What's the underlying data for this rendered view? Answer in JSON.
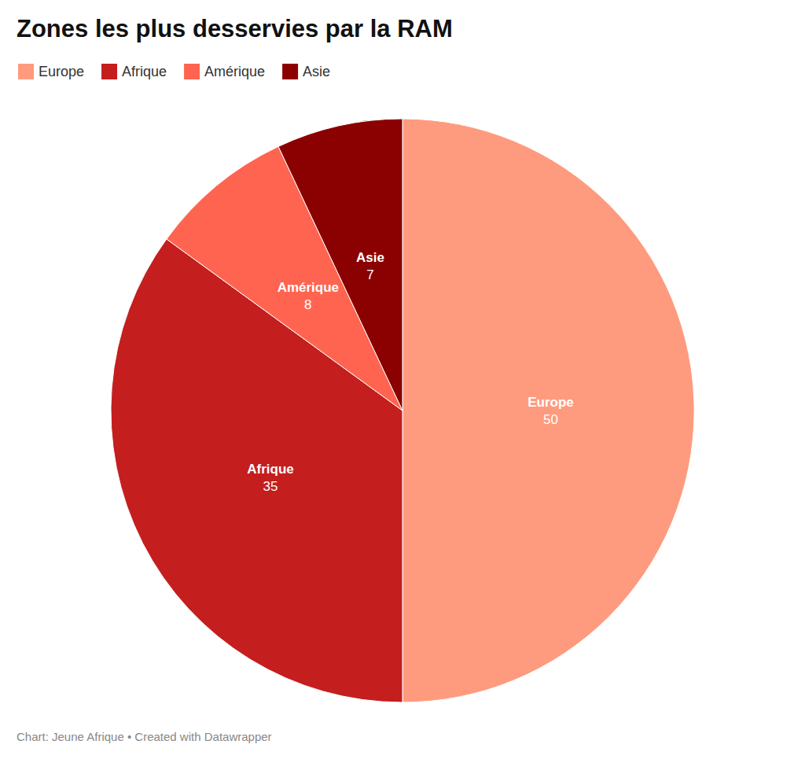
{
  "chart_data": {
    "type": "pie",
    "title": "Zones les plus desservies par la RAM",
    "source": "Chart: Jeune Afrique • Created with Datawrapper",
    "categories": [
      "Europe",
      "Afrique",
      "Amérique",
      "Asie"
    ],
    "values": [
      50,
      35,
      8,
      7
    ],
    "colors": [
      "#fe9b7e",
      "#c41e1e",
      "#ff6450",
      "#8b0000"
    ],
    "legend": "top-left",
    "data_labels": true
  }
}
